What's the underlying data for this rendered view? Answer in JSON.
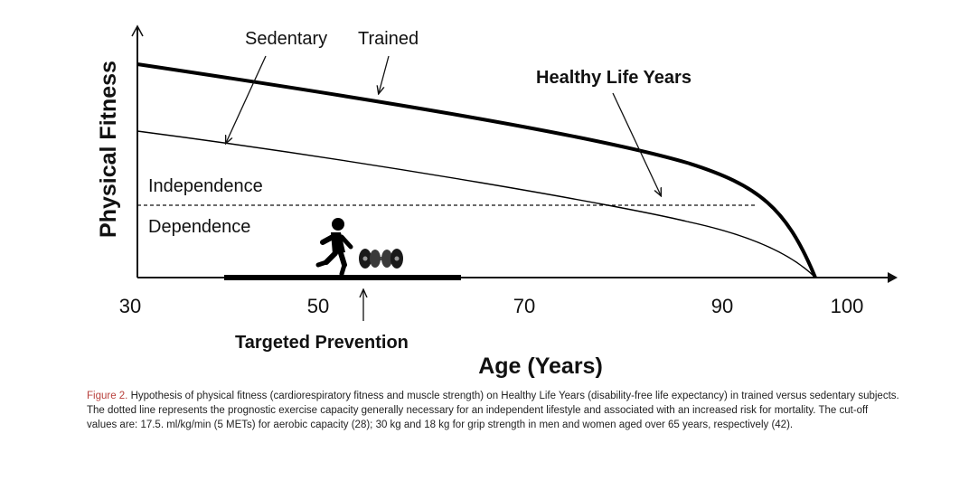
{
  "diagram": {
    "y_axis_label": "Physical Fitness",
    "x_axis_label": "Age (Years)",
    "x_ticks": [
      "30",
      "50",
      "70",
      "90",
      "100"
    ],
    "labels": {
      "sedentary": "Sedentary",
      "trained": "Trained",
      "healthy_life_years": "Healthy Life Years",
      "independence": "Independence",
      "dependence": "Dependence",
      "targeted_prevention": "Targeted Prevention"
    },
    "icons": [
      "runner-icon",
      "dumbbell-icon"
    ]
  },
  "caption": {
    "label": "Figure 2.",
    "text": " Hypothesis of physical fitness (cardiorespiratory fitness and muscle strength) on Healthy Life Years (disability-free life expectancy) in trained versus sedentary subjects. The dotted line represents the prognostic exercise capacity generally necessary for an independent lifestyle and associated with an increased risk for mortality. The cut-off values are: 17.5. ml/kg/min (5 METs) for aerobic capacity (28); 30 kg and 18 kg for grip strength in men and women aged over 65 years, respectively (42)."
  }
}
